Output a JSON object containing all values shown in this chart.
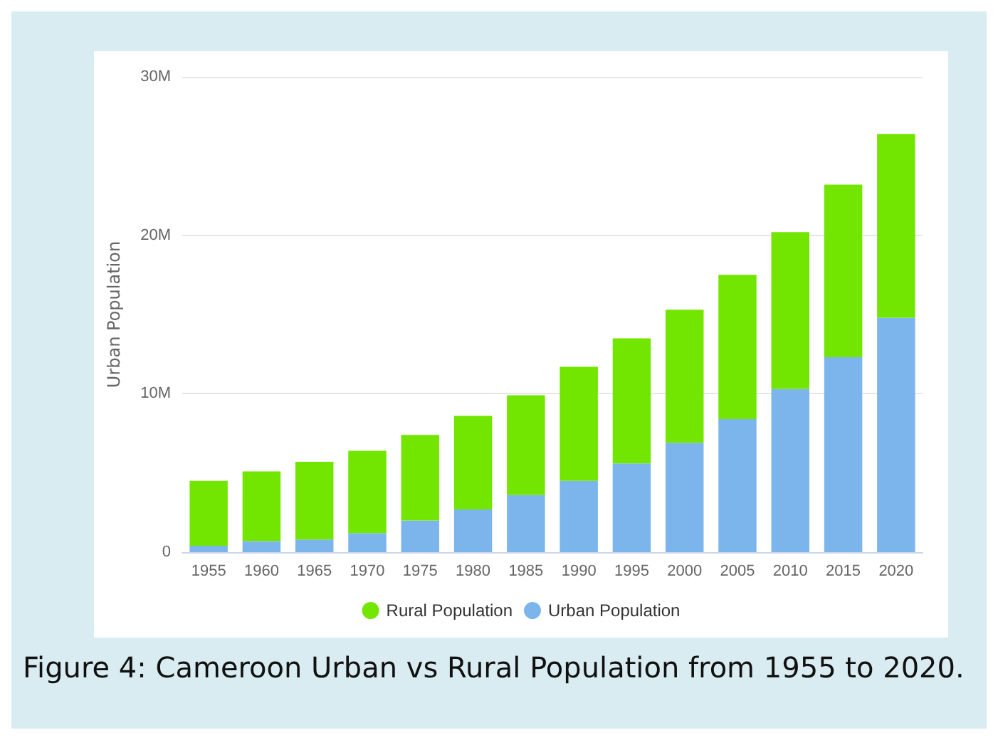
{
  "chart_data": {
    "type": "bar",
    "stacked": true,
    "ylabel": "Urban Population",
    "categories": [
      "1955",
      "1960",
      "1965",
      "1970",
      "1975",
      "1980",
      "1985",
      "1990",
      "1995",
      "2000",
      "2005",
      "2010",
      "2015",
      "2020"
    ],
    "series": [
      {
        "name": "Urban Population",
        "color": "#7cb5ec",
        "values": [
          400000,
          700000,
          800000,
          1200000,
          2000000,
          2700000,
          3600000,
          4500000,
          5600000,
          6900000,
          8400000,
          10300000,
          12300000,
          14800000
        ]
      },
      {
        "name": "Rural Population",
        "color": "#72e600",
        "values": [
          4100000,
          4400000,
          4900000,
          5200000,
          5400000,
          5900000,
          6300000,
          7200000,
          7900000,
          8400000,
          9100000,
          9900000,
          10900000,
          11600000
        ]
      }
    ],
    "ylim": [
      0,
      30000000
    ],
    "yticks": [
      0,
      {
        "value": 10000000,
        "label": "10M"
      },
      {
        "value": 20000000,
        "label": "20M"
      },
      {
        "value": 30000000,
        "label": "30M"
      }
    ],
    "grid": "y",
    "legend": "bottom",
    "annotations": [
      "Figure 4: Cameroon Urban vs Rural Population from 1955 to 2020."
    ]
  }
}
